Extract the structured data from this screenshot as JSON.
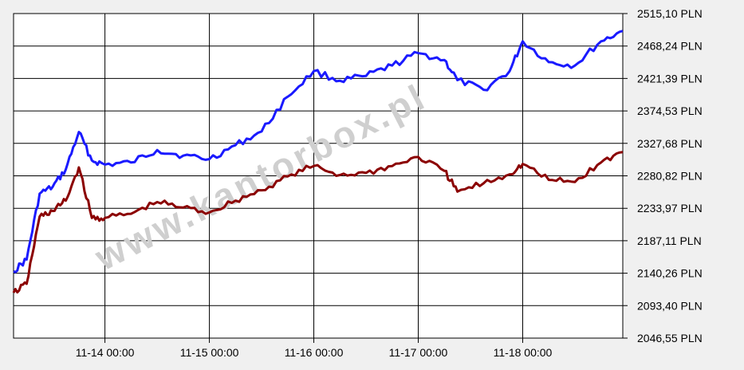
{
  "chart_data": {
    "type": "line",
    "currency_suffix": "PLN",
    "ylim": [
      2046.55,
      2515.1
    ],
    "y_ticks": [
      "2515,10 PLN",
      "2468,24 PLN",
      "2421,39 PLN",
      "2374,53 PLN",
      "2327,68 PLN",
      "2280,82 PLN",
      "2233,97 PLN",
      "2187,11 PLN",
      "2140,26 PLN",
      "2093,40 PLN",
      "2046,55 PLN"
    ],
    "x_ticks": [
      "11-14 00:00",
      "11-15 00:00",
      "11-16 00:00",
      "11-17 00:00",
      "11-18 00:00"
    ],
    "xlim": [
      "11-13 03:00",
      "11-18 23:00"
    ],
    "watermark": "www.kantorbox.pl",
    "grid": true,
    "colors": {
      "upper": "#1a1aff",
      "lower": "#8b0000",
      "background": "#ffffff",
      "grid": "#000000"
    },
    "series": [
      {
        "color": "#1a1aff",
        "x": [
          "11-13 03:00",
          "11-13 06:00",
          "11-13 09:00",
          "11-13 12:00",
          "11-13 15:00",
          "11-13 18:00",
          "11-13 21:00",
          "11-14 00:00",
          "11-14 06:00",
          "11-14 12:00",
          "11-14 18:00",
          "11-15 00:00",
          "11-15 06:00",
          "11-15 12:00",
          "11-15 18:00",
          "11-16 00:00",
          "11-16 06:00",
          "11-16 12:00",
          "11-16 18:00",
          "11-17 00:00",
          "11-17 06:00",
          "11-17 09:00",
          "11-17 15:00",
          "11-17 21:00",
          "11-18 00:00",
          "11-18 06:00",
          "11-18 12:00",
          "11-18 18:00",
          "11-18 23:00"
        ],
        "values": [
          2143,
          2160,
          2255,
          2265,
          2290,
          2344,
          2303,
          2297,
          2300,
          2318,
          2310,
          2305,
          2325,
          2345,
          2395,
          2432,
          2418,
          2425,
          2440,
          2458,
          2448,
          2419,
          2405,
          2432,
          2475,
          2445,
          2440,
          2475,
          2490
        ]
      },
      {
        "color": "#8b0000",
        "x": [
          "11-13 03:00",
          "11-13 06:00",
          "11-13 09:00",
          "11-13 12:00",
          "11-13 15:00",
          "11-13 18:00",
          "11-13 21:00",
          "11-14 00:00",
          "11-14 06:00",
          "11-14 12:00",
          "11-14 18:00",
          "11-15 00:00",
          "11-15 06:00",
          "11-15 12:00",
          "11-15 18:00",
          "11-16 00:00",
          "11-16 06:00",
          "11-16 12:00",
          "11-16 18:00",
          "11-17 00:00",
          "11-17 06:00",
          "11-17 09:00",
          "11-17 15:00",
          "11-17 21:00",
          "11-18 00:00",
          "11-18 06:00",
          "11-18 12:00",
          "11-18 18:00",
          "11-18 23:00"
        ],
        "values": [
          2112,
          2125,
          2222,
          2230,
          2245,
          2293,
          2220,
          2220,
          2226,
          2243,
          2235,
          2228,
          2245,
          2260,
          2280,
          2295,
          2282,
          2285,
          2295,
          2308,
          2288,
          2258,
          2270,
          2283,
          2298,
          2275,
          2272,
          2300,
          2315
        ]
      }
    ]
  }
}
